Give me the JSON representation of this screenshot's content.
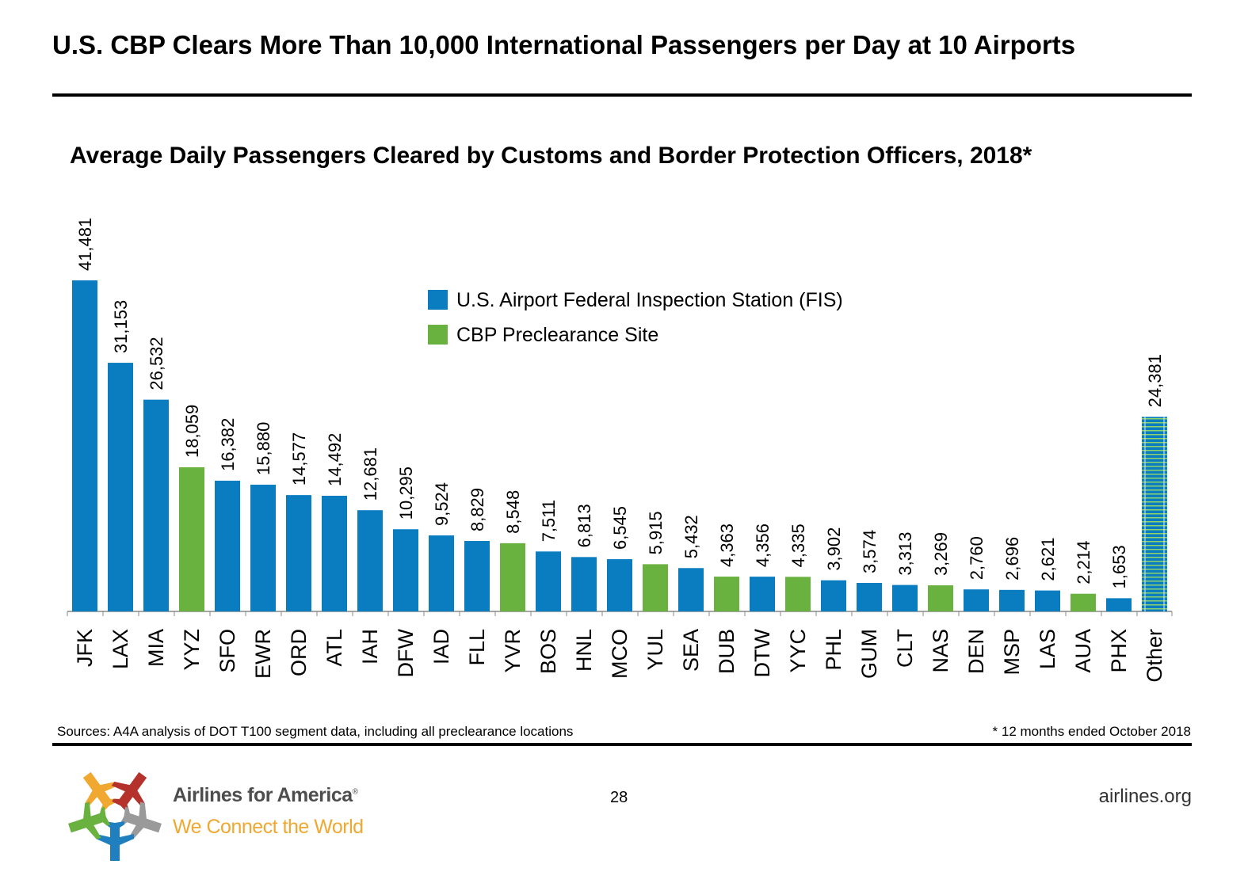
{
  "header": {
    "title": "U.S. CBP Clears More Than 10,000 International Passengers per Day at 10 Airports"
  },
  "footer": {
    "source": "Sources: A4A analysis of DOT T100 segment data, including all preclearance locations",
    "note": "* 12 months ended October 2018",
    "page_number": "28",
    "website": "airlines.org",
    "brand_name": "Airlines for America",
    "brand_mark": "®",
    "tagline": "We Connect the World"
  },
  "colors": {
    "fis": "#0a7dc0",
    "preclearance": "#6ab23f",
    "other_stripe": "#8fd36a"
  },
  "chart_data": {
    "type": "bar",
    "title": "Average Daily Passengers Cleared by Customs and Border Protection Officers, 2018*",
    "xlabel": "",
    "ylabel": "",
    "ylim": [
      0,
      41481
    ],
    "grid": false,
    "legend_position": "top-center",
    "legend": [
      {
        "key": "fis",
        "label": "U.S. Airport Federal Inspection Station (FIS)"
      },
      {
        "key": "preclearance",
        "label": "CBP Preclearance Site"
      }
    ],
    "categories": [
      "JFK",
      "LAX",
      "MIA",
      "YYZ",
      "SFO",
      "EWR",
      "ORD",
      "ATL",
      "IAH",
      "DFW",
      "IAD",
      "FLL",
      "YVR",
      "BOS",
      "HNL",
      "MCO",
      "YUL",
      "SEA",
      "DUB",
      "DTW",
      "YYC",
      "PHL",
      "GUM",
      "CLT",
      "NAS",
      "DEN",
      "MSP",
      "LAS",
      "AUA",
      "PHX",
      "Other"
    ],
    "values": [
      41481,
      31153,
      26532,
      18059,
      16382,
      15880,
      14577,
      14492,
      12681,
      10295,
      9524,
      8829,
      8548,
      7511,
      6813,
      6545,
      5915,
      5432,
      4363,
      4356,
      4335,
      3902,
      3574,
      3313,
      3269,
      2760,
      2696,
      2621,
      2214,
      1653,
      24381
    ],
    "labels": [
      "41,481",
      "31,153",
      "26,532",
      "18,059",
      "16,382",
      "15,880",
      "14,577",
      "14,492",
      "12,681",
      "10,295",
      "9,524",
      "8,829",
      "8,548",
      "7,511",
      "6,813",
      "6,545",
      "5,915",
      "5,432",
      "4,363",
      "4,356",
      "4,335",
      "3,902",
      "3,574",
      "3,313",
      "3,269",
      "2,760",
      "2,696",
      "2,621",
      "2,214",
      "1,653",
      "24,381"
    ],
    "site_type": [
      "fis",
      "fis",
      "fis",
      "preclearance",
      "fis",
      "fis",
      "fis",
      "fis",
      "fis",
      "fis",
      "fis",
      "fis",
      "preclearance",
      "fis",
      "fis",
      "fis",
      "preclearance",
      "fis",
      "preclearance",
      "fis",
      "preclearance",
      "fis",
      "fis",
      "fis",
      "preclearance",
      "fis",
      "fis",
      "fis",
      "preclearance",
      "fis",
      "other"
    ]
  }
}
